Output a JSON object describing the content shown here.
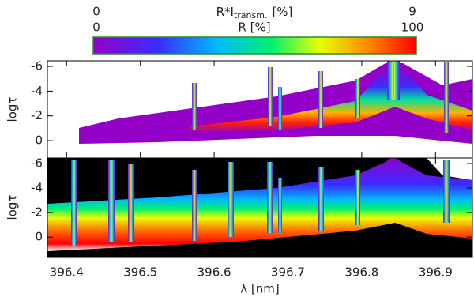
{
  "chart_data": {
    "type": "heatmap",
    "colorbar": {
      "upper_label": {
        "main": "R*I",
        "sub": "transm.",
        "unit": "[%]"
      },
      "upper_lim": [
        0,
        9
      ],
      "upper_ticks": [
        0,
        9
      ],
      "lower_label": "R [%]",
      "lower_lim": [
        0,
        100
      ],
      "lower_ticks": [
        0,
        100
      ]
    },
    "xlabel": "λ [nm]",
    "xlim": [
      396.374,
      396.95
    ],
    "xticks": [
      396.4,
      396.5,
      396.6,
      396.7,
      396.8,
      396.9
    ],
    "panels": [
      {
        "ylabel": "logτ",
        "ylim": [
          1.4,
          -6.45
        ],
        "yticks": [
          0,
          -2,
          -4,
          -6
        ]
      },
      {
        "ylabel": "logτ",
        "ylim": [
          1.6,
          -6.45
        ],
        "yticks": [
          0,
          -2,
          -4,
          -6
        ]
      }
    ]
  }
}
